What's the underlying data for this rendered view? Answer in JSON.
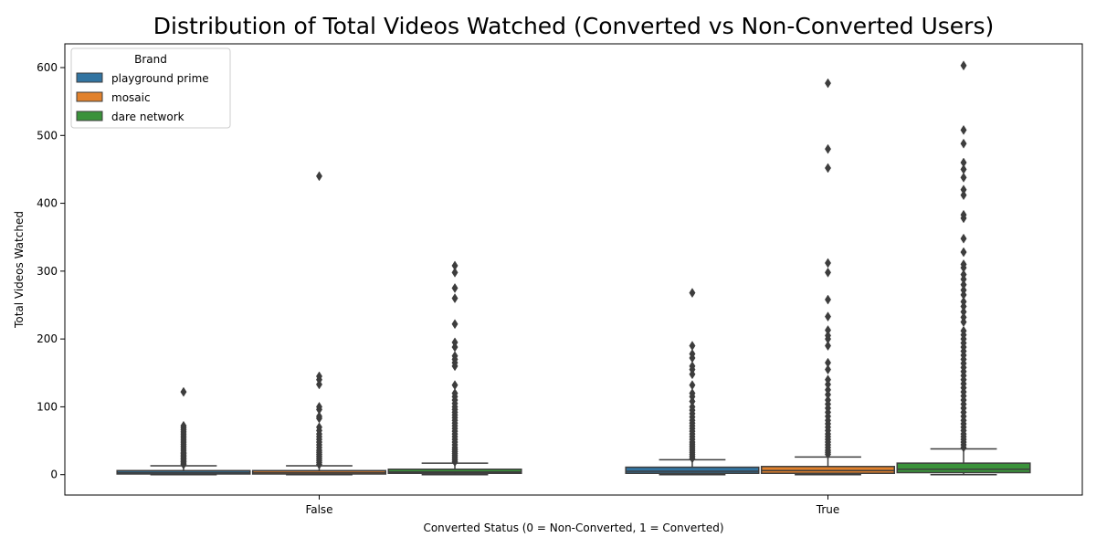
{
  "chart_data": {
    "type": "box",
    "title": "Distribution of Total Videos Watched (Converted vs Non-Converted Users)",
    "xlabel": "Converted Status (0 = Non-Converted, 1 = Converted)",
    "ylabel": "Total Videos Watched",
    "categories": [
      "False",
      "True"
    ],
    "ylim": [
      -30,
      635
    ],
    "yticks": [
      0,
      100,
      200,
      300,
      400,
      500,
      600
    ],
    "legend": {
      "title": "Brand",
      "placement": "top-left"
    },
    "series": [
      {
        "name": "playground prime",
        "color": "#3274a1",
        "boxes": [
          {
            "category": "False",
            "whisker_low": 0,
            "q1": 1,
            "median": 3,
            "q3": 6,
            "whisker_high": 13,
            "outliers": [
              15,
              17,
              19,
              21,
              23,
              25,
              27,
              29,
              31,
              33,
              36,
              39,
              42,
              45,
              48,
              51,
              54,
              57,
              60,
              63,
              66,
              69,
              72,
              122
            ]
          },
          {
            "category": "True",
            "whisker_low": 0,
            "q1": 2,
            "median": 5,
            "q3": 11,
            "whisker_high": 22,
            "outliers": [
              24,
              27,
              30,
              33,
              36,
              39,
              42,
              45,
              48,
              52,
              56,
              60,
              64,
              68,
              72,
              76,
              80,
              85,
              90,
              95,
              100,
              108,
              115,
              120,
              132,
              148,
              155,
              160,
              172,
              178,
              190,
              268
            ]
          }
        ]
      },
      {
        "name": "mosaic",
        "color": "#e1812c",
        "boxes": [
          {
            "category": "False",
            "whisker_low": 0,
            "q1": 1,
            "median": 3,
            "q3": 6,
            "whisker_high": 13,
            "outliers": [
              15,
              18,
              21,
              24,
              27,
              30,
              33,
              36,
              40,
              44,
              48,
              52,
              56,
              60,
              65,
              70,
              83,
              86,
              96,
              100,
              133,
              140,
              145,
              440
            ]
          },
          {
            "category": "True",
            "whisker_low": 0,
            "q1": 2,
            "median": 6,
            "q3": 12,
            "whisker_high": 26,
            "outliers": [
              30,
              33,
              36,
              40,
              44,
              48,
              52,
              56,
              60,
              65,
              70,
              75,
              80,
              86,
              92,
              98,
              104,
              110,
              118,
              125,
              133,
              140,
              155,
              165,
              190,
              200,
              205,
              213,
              233,
              258,
              298,
              312,
              452,
              480,
              577
            ]
          }
        ]
      },
      {
        "name": "dare network",
        "color": "#3a923a",
        "boxes": [
          {
            "category": "False",
            "whisker_low": 0,
            "q1": 2,
            "median": 4,
            "q3": 8,
            "whisker_high": 17,
            "outliers": [
              19,
              22,
              25,
              28,
              31,
              34,
              37,
              40,
              44,
              48,
              52,
              56,
              60,
              64,
              68,
              72,
              76,
              80,
              84,
              88,
              92,
              96,
              100,
              105,
              110,
              115,
              120,
              132,
              160,
              165,
              170,
              175,
              188,
              195,
              222,
              260,
              275,
              298,
              308
            ]
          },
          {
            "category": "True",
            "whisker_low": 0,
            "q1": 3,
            "median": 8,
            "q3": 17,
            "whisker_high": 38,
            "outliers": [
              40,
              44,
              48,
              52,
              56,
              60,
              65,
              70,
              75,
              80,
              86,
              92,
              98,
              104,
              110,
              116,
              122,
              128,
              134,
              140,
              146,
              152,
              158,
              164,
              170,
              176,
              182,
              188,
              194,
              200,
              206,
              212,
              225,
              232,
              240,
              248,
              255,
              265,
              272,
              280,
              288,
              295,
              305,
              310,
              328,
              348,
              378,
              383,
              412,
              420,
              438,
              450,
              460,
              488,
              508,
              603
            ]
          }
        ]
      }
    ]
  }
}
